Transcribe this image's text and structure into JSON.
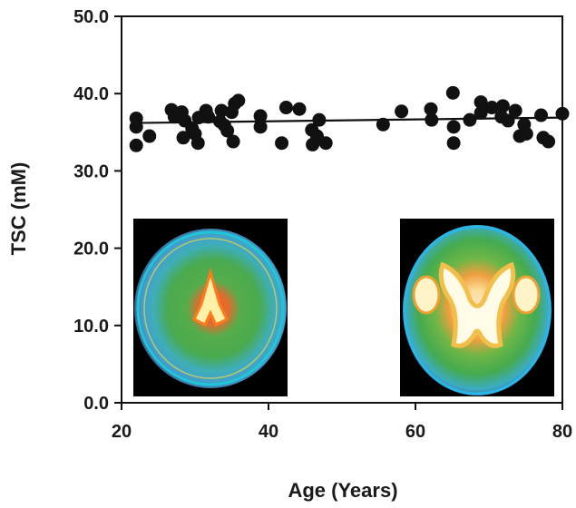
{
  "chart_data": {
    "type": "scatter",
    "xlabel": "Age (Years)",
    "ylabel": "TSC (mM)",
    "xlim": [
      20,
      80
    ],
    "ylim": [
      0,
      50
    ],
    "xticks": [
      20,
      40,
      60,
      80
    ],
    "yticks": [
      0,
      10,
      20,
      30,
      40,
      50
    ],
    "xtick_labels": [
      "20",
      "40",
      "60",
      "80"
    ],
    "ytick_labels": [
      "0.0",
      "10.0",
      "20.0",
      "30.0",
      "40.0",
      "50.0"
    ],
    "grid": false,
    "marker_color": "#111111",
    "points": [
      {
        "x": 22.0,
        "y": 36.8
      },
      {
        "x": 22.0,
        "y": 35.7
      },
      {
        "x": 22.0,
        "y": 33.3
      },
      {
        "x": 23.8,
        "y": 34.5
      },
      {
        "x": 26.8,
        "y": 37.9
      },
      {
        "x": 27.2,
        "y": 37.0
      },
      {
        "x": 28.2,
        "y": 37.6
      },
      {
        "x": 28.4,
        "y": 34.3
      },
      {
        "x": 28.6,
        "y": 36.5
      },
      {
        "x": 29.6,
        "y": 35.5
      },
      {
        "x": 30.0,
        "y": 34.8
      },
      {
        "x": 30.4,
        "y": 33.6
      },
      {
        "x": 30.5,
        "y": 36.9
      },
      {
        "x": 31.5,
        "y": 37.8
      },
      {
        "x": 31.8,
        "y": 37.0
      },
      {
        "x": 33.4,
        "y": 36.4
      },
      {
        "x": 33.6,
        "y": 37.8
      },
      {
        "x": 34.0,
        "y": 35.9
      },
      {
        "x": 34.4,
        "y": 35.2
      },
      {
        "x": 35.0,
        "y": 37.6
      },
      {
        "x": 35.2,
        "y": 33.8
      },
      {
        "x": 35.4,
        "y": 38.7
      },
      {
        "x": 35.9,
        "y": 39.1
      },
      {
        "x": 38.9,
        "y": 37.1
      },
      {
        "x": 38.9,
        "y": 35.7
      },
      {
        "x": 41.8,
        "y": 33.6
      },
      {
        "x": 42.4,
        "y": 38.2
      },
      {
        "x": 44.2,
        "y": 38.0
      },
      {
        "x": 45.9,
        "y": 35.3
      },
      {
        "x": 46.0,
        "y": 33.4
      },
      {
        "x": 46.6,
        "y": 34.5
      },
      {
        "x": 46.9,
        "y": 36.6
      },
      {
        "x": 47.8,
        "y": 33.6
      },
      {
        "x": 55.6,
        "y": 36.0
      },
      {
        "x": 58.1,
        "y": 37.7
      },
      {
        "x": 62.1,
        "y": 38.0
      },
      {
        "x": 62.2,
        "y": 36.6
      },
      {
        "x": 65.1,
        "y": 40.1
      },
      {
        "x": 65.2,
        "y": 35.7
      },
      {
        "x": 65.2,
        "y": 33.6
      },
      {
        "x": 67.4,
        "y": 36.6
      },
      {
        "x": 68.9,
        "y": 38.9
      },
      {
        "x": 68.9,
        "y": 37.5
      },
      {
        "x": 70.4,
        "y": 38.2
      },
      {
        "x": 71.7,
        "y": 37.0
      },
      {
        "x": 71.9,
        "y": 38.4
      },
      {
        "x": 72.6,
        "y": 36.5
      },
      {
        "x": 73.6,
        "y": 37.8
      },
      {
        "x": 74.2,
        "y": 34.5
      },
      {
        "x": 74.8,
        "y": 36.0
      },
      {
        "x": 75.1,
        "y": 34.8
      },
      {
        "x": 77.1,
        "y": 37.2
      },
      {
        "x": 77.4,
        "y": 34.3
      },
      {
        "x": 78.1,
        "y": 33.8
      },
      {
        "x": 80.0,
        "y": 37.4
      }
    ],
    "trendline": {
      "x": [
        22,
        80
      ],
      "y": [
        36.2,
        36.9
      ]
    },
    "insets": [
      {
        "name": "brain-scan-left",
        "description_role": "axial sodium map, younger subject"
      },
      {
        "name": "brain-scan-right",
        "description_role": "axial sodium map, older subject"
      }
    ]
  }
}
